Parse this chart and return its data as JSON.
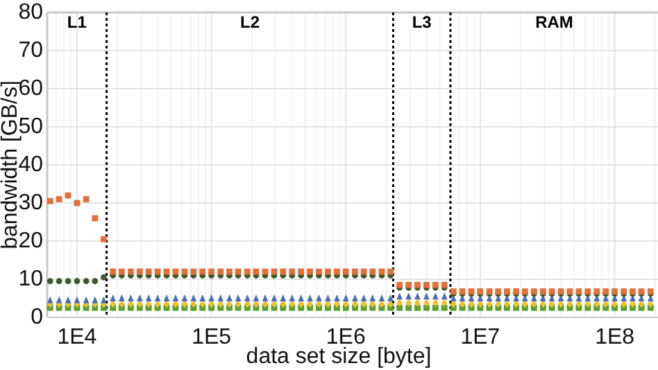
{
  "chart_data": {
    "type": "scatter",
    "xlabel": "data set size [byte]",
    "ylabel": "bandwidth [GB/s]",
    "log": "x",
    "grid": true,
    "xlim": [
      6000,
      210000000
    ],
    "xticks": [
      {
        "value": 10000,
        "label": "1E4"
      },
      {
        "value": 100000,
        "label": "1E5"
      },
      {
        "value": 1000000,
        "label": "1E6"
      },
      {
        "value": 10000000,
        "label": "1E7"
      },
      {
        "value": 100000000,
        "label": "1E8"
      }
    ],
    "ylim": [
      0,
      80
    ],
    "yticks": [
      0,
      10,
      20,
      30,
      40,
      50,
      60,
      70,
      80
    ],
    "x": [
      6310,
      7360,
      8580,
      10000,
      11700,
      13600,
      15800,
      18500,
      21500,
      25100,
      29300,
      34100,
      39800,
      46400,
      54100,
      63100,
      73600,
      85800,
      100000,
      117000,
      136000,
      158000,
      185000,
      215000,
      251000,
      293000,
      341000,
      398000,
      464000,
      541000,
      631000,
      736000,
      858000,
      1000000,
      1170000,
      1360000,
      1580000,
      1850000,
      2150000,
      2510000,
      2930000,
      3410000,
      3980000,
      4640000,
      5410000,
      6310000,
      7360000,
      8580000,
      10000000,
      11700000,
      13600000,
      15800000,
      18500000,
      21500000,
      25100000,
      29300000,
      34100000,
      39800000,
      46400000,
      54100000,
      63100000,
      73600000,
      85800000,
      100000000,
      117000000,
      136000000,
      158000000,
      185000000
    ],
    "series": [
      {
        "color": "#5aa02c",
        "marker": "square",
        "values": [
          2.5,
          2.5,
          2.5,
          2.5,
          2.5,
          2.5,
          2.5,
          2.5,
          2.5,
          2.5,
          2.5,
          2.5,
          2.5,
          2.5,
          2.5,
          2.5,
          2.5,
          2.5,
          2.5,
          2.5,
          2.5,
          2.5,
          2.5,
          2.5,
          2.5,
          2.5,
          2.5,
          2.5,
          2.5,
          2.5,
          2.5,
          2.5,
          2.5,
          2.5,
          2.5,
          2.5,
          2.5,
          2.5,
          2.5,
          2.5,
          2.5,
          2.5,
          2.5,
          2.5,
          2.5,
          2.5,
          2.5,
          2.5,
          2.5,
          2.5,
          2.5,
          2.5,
          2.5,
          2.5,
          2.5,
          2.5,
          2.5,
          2.5,
          2.5,
          2.5,
          2.5,
          2.5,
          2.5,
          2.5,
          2.5,
          2.5,
          2.5,
          2.5
        ]
      },
      {
        "color": "#f2c12e",
        "marker": "diamond",
        "values": [
          3.5,
          3.5,
          3.5,
          3.5,
          3.5,
          3.5,
          3.5,
          3.5,
          3.5,
          3.5,
          3.5,
          3.5,
          3.5,
          3.5,
          3.5,
          3.5,
          3.5,
          3.5,
          3.5,
          3.5,
          3.5,
          3.5,
          3.5,
          3.5,
          3.5,
          3.5,
          3.5,
          3.5,
          3.5,
          3.5,
          3.5,
          3.5,
          3.5,
          3.5,
          3.5,
          3.5,
          3.5,
          3.5,
          3.5,
          3.8,
          3.8,
          3.8,
          3.8,
          3.8,
          3.8,
          3.5,
          3.5,
          3.5,
          3.5,
          3.5,
          3.5,
          3.5,
          3.5,
          3.5,
          3.5,
          3.5,
          3.5,
          3.5,
          3.5,
          3.5,
          3.5,
          3.5,
          3.5,
          3.5,
          3.5,
          3.5,
          3.5,
          3.5
        ]
      },
      {
        "color": "#4a6fb5",
        "marker": "triangle",
        "values": [
          4.5,
          4.5,
          4.5,
          4.5,
          4.5,
          4.5,
          4.5,
          5,
          5,
          5,
          5,
          5,
          5,
          5,
          5,
          5,
          5,
          5,
          5,
          5,
          5,
          5,
          5,
          5,
          5,
          5,
          5,
          5,
          5,
          5,
          5,
          5,
          5,
          5,
          5,
          5,
          5,
          5,
          5,
          5.5,
          5.5,
          5.5,
          5.5,
          5.5,
          5.5,
          5,
          5,
          5,
          5,
          5,
          5,
          5,
          5,
          5,
          5,
          5,
          5,
          5,
          5,
          5,
          5,
          5,
          5,
          5,
          5,
          5,
          5,
          5
        ]
      },
      {
        "color": "#3d5a2a",
        "marker": "circle",
        "values": [
          9.5,
          9.5,
          9.5,
          9.5,
          9.5,
          9.5,
          10.5,
          11,
          11,
          11,
          11,
          11,
          11,
          11,
          11,
          11,
          11,
          11,
          11,
          11,
          11,
          11,
          11,
          11,
          11,
          11,
          11,
          11,
          11,
          11,
          11,
          11,
          11,
          11,
          11,
          11,
          11,
          11,
          11,
          7.8,
          7.8,
          7.8,
          7.8,
          7.8,
          7.8,
          6.2,
          6.2,
          6.2,
          6.2,
          6.2,
          6.2,
          6.2,
          6.2,
          6.2,
          6.2,
          6.2,
          6.2,
          6.2,
          6.2,
          6.2,
          6.2,
          6.2,
          6.2,
          6.2,
          6.2,
          6.2,
          6.2,
          6.2
        ]
      },
      {
        "color": "#e2703a",
        "marker": "square",
        "values": [
          30.5,
          31,
          32,
          30,
          31,
          26,
          20.5,
          12,
          12,
          12,
          12,
          12,
          12,
          12,
          12,
          12,
          12,
          12,
          12,
          12,
          12,
          12,
          12,
          12,
          12,
          12,
          12,
          12,
          12,
          12,
          12,
          12,
          12,
          12,
          12,
          12,
          12,
          12,
          12,
          8.5,
          8.5,
          8.5,
          8.5,
          8.5,
          8.5,
          6.8,
          6.8,
          6.8,
          6.8,
          6.8,
          6.8,
          6.8,
          6.8,
          6.8,
          6.8,
          6.8,
          6.8,
          6.8,
          6.8,
          6.8,
          6.8,
          6.8,
          6.8,
          6.8,
          6.8,
          6.8,
          6.8,
          6.8
        ]
      }
    ],
    "ref_lines": [
      {
        "axis": "x",
        "value": 16600,
        "line_style": "dotted",
        "color": "#000000"
      },
      {
        "axis": "x",
        "value": 2250000,
        "line_style": "dotted",
        "color": "#000000"
      },
      {
        "axis": "x",
        "value": 6000000,
        "line_style": "dotted",
        "color": "#000000"
      }
    ],
    "annotations": [
      "L1",
      "L2",
      "L3",
      "RAM"
    ]
  }
}
